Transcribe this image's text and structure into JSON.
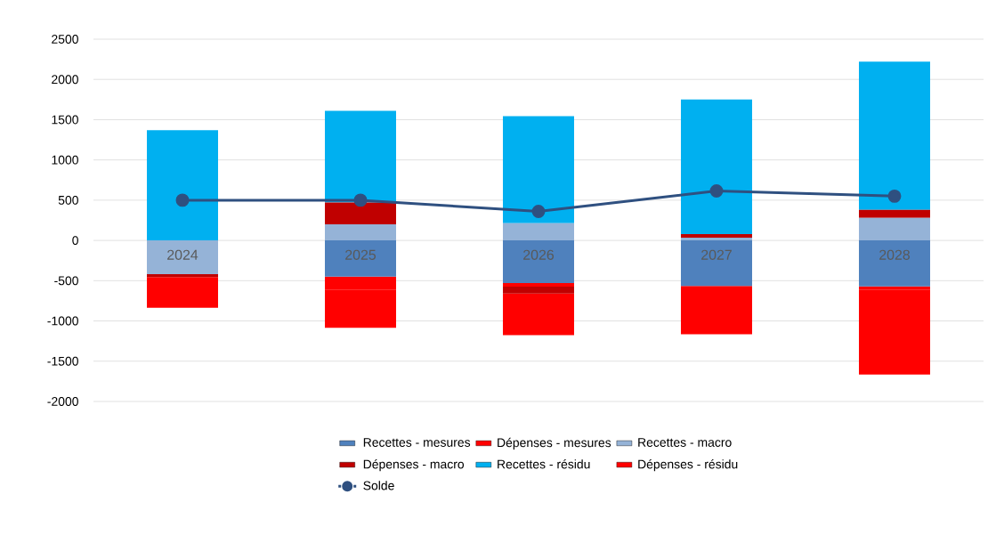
{
  "chart_data": {
    "type": "bar",
    "stacked": true,
    "categories": [
      "2024",
      "2025",
      "2026",
      "2027",
      "2028"
    ],
    "series": [
      {
        "name": "Recettes - mesures",
        "color": "#4f81bd",
        "values": [
          0,
          -450,
          -530,
          -565,
          -570
        ]
      },
      {
        "name": "Dépenses - mesures",
        "color": "#ff0000",
        "values": [
          0,
          -165,
          -45,
          -20,
          -45
        ]
      },
      {
        "name": "Recettes - macro",
        "color": "#95b3d7",
        "values": [
          -420,
          200,
          215,
          35,
          280
        ]
      },
      {
        "name": "Dépenses - macro",
        "color": "#c00000",
        "values": [
          -35,
          270,
          -85,
          45,
          100
        ]
      },
      {
        "name": "Recettes - résidu",
        "color": "#00b0f0",
        "values": [
          1370,
          1140,
          1330,
          1670,
          1840
        ]
      },
      {
        "name": "Dépenses - résidu",
        "color": "#ff0000",
        "values": [
          -380,
          -470,
          -515,
          -580,
          -1050
        ]
      },
      {
        "name": "Solde",
        "type": "line",
        "color": "#2f5080",
        "marker": "circle",
        "values": [
          500,
          500,
          360,
          615,
          550
        ]
      }
    ],
    "ylim": [
      -2000,
      2500
    ],
    "yticks": [
      -2000,
      -1500,
      -1000,
      -500,
      0,
      500,
      1000,
      1500,
      2000,
      2500
    ],
    "grid": "y",
    "legend": "bottom"
  }
}
